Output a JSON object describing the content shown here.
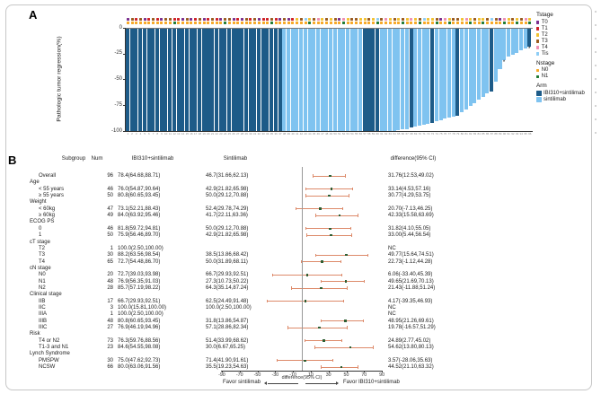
{
  "panels": {
    "a_label": "A",
    "b_label": "B"
  },
  "colors": {
    "arm_dark": "#1d5b88",
    "arm_light": "#7fc3f0",
    "tstage": {
      "0": "#7b2f8e",
      "1": "#cf2127",
      "2": "#f2c231",
      "3": "#9a5b1f",
      "4": "#ef8fb2",
      "i": "#8ecdf5"
    },
    "nstage": {
      "0": "#f7a928",
      "1": "#1f7a33"
    },
    "ci": "#dd8a6a",
    "point": "#2f5e33"
  },
  "chart_data": [
    {
      "type": "bar",
      "subtype": "waterfall",
      "ylabel": "Pathologic tumor regression(%)",
      "ylim": [
        0,
        -100
      ],
      "yticks": [
        0,
        -25,
        -50,
        -75,
        -100
      ],
      "xtick_range": [
        1,
        96
      ],
      "legend": {
        "tstage_title": "Tstage",
        "tstage_items": [
          {
            "key": "0",
            "label": "T0"
          },
          {
            "key": "1",
            "label": "T1"
          },
          {
            "key": "2",
            "label": "T2"
          },
          {
            "key": "3",
            "label": "T3"
          },
          {
            "key": "4",
            "label": "T4"
          },
          {
            "key": "i",
            "label": "Tis"
          }
        ],
        "nstage_title": "Nstage",
        "nstage_items": [
          {
            "key": "0",
            "label": "N0"
          },
          {
            "key": "1",
            "label": "N1"
          }
        ],
        "arm_title": "Arm",
        "arm_items": [
          {
            "key": "D",
            "label": "IBI310+sintilimab"
          },
          {
            "key": "L",
            "label": "sintilimab"
          }
        ]
      },
      "patients": {
        "values": [
          -100,
          -100,
          -100,
          -100,
          -100,
          -100,
          -100,
          -100,
          -100,
          -100,
          -100,
          -100,
          -100,
          -100,
          -100,
          -100,
          -100,
          -100,
          -100,
          -100,
          -100,
          -100,
          -100,
          -100,
          -100,
          -100,
          -100,
          -100,
          -100,
          -100,
          -100,
          -100,
          -100,
          -100,
          -100,
          -100,
          -100,
          -100,
          -100,
          -100,
          -100,
          -100,
          -100,
          -100,
          -100,
          -100,
          -100,
          -100,
          -100,
          -100,
          -100,
          -100,
          -100,
          -100,
          -100,
          -100,
          -100,
          -100,
          -100,
          -100,
          -100,
          -100,
          -100,
          -100,
          -99,
          -98,
          -98,
          -97,
          -96,
          -95,
          -94,
          -93,
          -92,
          -91,
          -90,
          -88,
          -87,
          -86,
          -85,
          -82,
          -79,
          -76,
          -73,
          -70,
          -67,
          -64,
          -62,
          -52,
          -40,
          -31,
          -28,
          -26,
          -24,
          -22,
          -20,
          -18
        ],
        "arm": "DDDDDDDDDDDDDDDDDDDDDDDDDDDDDDDDDDDDDLLLLLLLLLLLLLLLLLLLDDDDLLLLLLLDLLLLDLLLLLDLLLLLLLDLLLLLLLLD",
        "tstage": "031301310331103013013103301031301131030123i2342323042332232i3423232423i223042332423223i304232342",
        "nstage": "000000000001000000000001000000000010000000010000000100000001000001000100010010000100100001001001",
        "asterisk_indices": [
          89,
          95
        ]
      }
    },
    {
      "type": "table",
      "subtype": "forest",
      "columns": {
        "subgroup": "Subgroup",
        "num": "Num",
        "ibi": "IBI310+sintilimab",
        "sint": "Sintilimab",
        "diff": "difference(95% CI)"
      },
      "xlabel": "difference(95% CI)",
      "favor_left": "Favor sintilimab",
      "favor_right": "Favor IBI310+sintilimab",
      "xticks": [
        -90,
        -70,
        -50,
        -30,
        -10,
        10,
        30,
        50,
        70,
        90
      ],
      "xlim": [
        -90,
        90
      ],
      "rows": [
        {
          "label": "Overall",
          "num": "96",
          "ibi": "78.4(64.68,88.71)",
          "sint": "46.7(31.66,62.13)",
          "diff": "31.76(12.53,49.02)",
          "est": 31.76,
          "lo": 12.53,
          "hi": 49.02
        },
        {
          "label": "Age",
          "header": true
        },
        {
          "label": "< 55 years",
          "num": "46",
          "ibi": "76.0(54.87,90.64)",
          "sint": "42.9(21.82,65.98)",
          "diff": "33.14(4.53,57.16)",
          "est": 33.14,
          "lo": 4.53,
          "hi": 57.16
        },
        {
          "label": "≥ 55 years",
          "num": "50",
          "ibi": "80.8(60.65,93.45)",
          "sint": "50.0(29.12,70.88)",
          "diff": "30.77(4.29,53.75)",
          "est": 30.77,
          "lo": 4.29,
          "hi": 53.75
        },
        {
          "label": "Weight",
          "header": true
        },
        {
          "label": "< 60kg",
          "num": "47",
          "ibi": "73.1(52.21,88.43)",
          "sint": "52.4(29.78,74.29)",
          "diff": "20.70(-7.13,46.25)",
          "est": 20.7,
          "lo": -7.13,
          "hi": 46.25
        },
        {
          "label": "≥ 60kg",
          "num": "49",
          "ibi": "84.0(63.92,95.46)",
          "sint": "41.7(22.11,63.36)",
          "diff": "42.33(15.58,63.69)",
          "est": 42.33,
          "lo": 15.58,
          "hi": 63.69
        },
        {
          "label": "ECOG PS",
          "header": true
        },
        {
          "label": "0",
          "num": "46",
          "ibi": "81.8(59.72,94.81)",
          "sint": "50.0(29.12,70.88)",
          "diff": "31.82(4.10,55.05)",
          "est": 31.82,
          "lo": 4.1,
          "hi": 55.05
        },
        {
          "label": "1",
          "num": "50",
          "ibi": "75.9(56.46,89.70)",
          "sint": "42.9(21.82,65.98)",
          "diff": "33.00(5.44,56.54)",
          "est": 33.0,
          "lo": 5.44,
          "hi": 56.54
        },
        {
          "label": "cT stage",
          "header": true
        },
        {
          "label": "T2",
          "num": "1",
          "ibi": "100.0(2.50,100.00)",
          "sint": "",
          "diff": "NC"
        },
        {
          "label": "T3",
          "num": "30",
          "ibi": "88.2(63.56,98.54)",
          "sint": "38.5(13.86,68.42)",
          "diff": "49.77(15.64,74.51)",
          "est": 49.77,
          "lo": 15.64,
          "hi": 74.51
        },
        {
          "label": "T4",
          "num": "65",
          "ibi": "72.7(54.48,86.70)",
          "sint": "50.0(31.89,68.11)",
          "diff": "22.73(-1.12,44.28)",
          "est": 22.73,
          "lo": -1.12,
          "hi": 44.28
        },
        {
          "label": "cN stage",
          "header": true
        },
        {
          "label": "N0",
          "num": "20",
          "ibi": "72.7(39.03,93.98)",
          "sint": "66.7(29.93,92.51)",
          "diff": "6.06(-33.40,45.39)",
          "est": 6.06,
          "lo": -33.4,
          "hi": 45.39
        },
        {
          "label": "N1",
          "num": "48",
          "ibi": "76.9(56.35,91.03)",
          "sint": "27.3(10.73,50.22)",
          "diff": "49.65(21.69,70.13)",
          "est": 49.65,
          "lo": 21.69,
          "hi": 70.13
        },
        {
          "label": "N2",
          "num": "28",
          "ibi": "85.7(57.19,98.22)",
          "sint": "64.3(35.14,87.24)",
          "diff": "21.43(-11.88,51.24)",
          "est": 21.43,
          "lo": -11.88,
          "hi": 51.24
        },
        {
          "label": "Clinical stage",
          "header": true
        },
        {
          "label": "IIB",
          "num": "17",
          "ibi": "66.7(29.93,92.51)",
          "sint": "62.5(24.49,91.48)",
          "diff": "4.17(-39.35,46.93)",
          "est": 4.17,
          "lo": -39.35,
          "hi": 46.93
        },
        {
          "label": "IIC",
          "num": "3",
          "ibi": "100.0(15.81,100.00)",
          "sint": "100.0(2.50,100.00)",
          "diff": "NC"
        },
        {
          "label": "IIIA",
          "num": "1",
          "ibi": "100.0(2.50,100.00)",
          "sint": "",
          "diff": "NC"
        },
        {
          "label": "IIIB",
          "num": "48",
          "ibi": "80.8(60.65,93.45)",
          "sint": "31.8(13.86,54.87)",
          "diff": "48.95(21.26,69.61)",
          "est": 48.95,
          "lo": 21.26,
          "hi": 69.61
        },
        {
          "label": "IIIC",
          "num": "27",
          "ibi": "76.9(46.19,94.96)",
          "sint": "57.1(28.86,82.34)",
          "diff": "19.78(-16.57,51.29)",
          "est": 19.78,
          "lo": -16.57,
          "hi": 51.29
        },
        {
          "label": "Risk",
          "header": true
        },
        {
          "label": "T4 or N2",
          "num": "73",
          "ibi": "76.3(59.76,88.56)",
          "sint": "51.4(33.99,68.62)",
          "diff": "24.89(2.77,45.02)",
          "est": 24.89,
          "lo": 2.77,
          "hi": 45.02
        },
        {
          "label": "T1-3 and N1",
          "num": "23",
          "ibi": "84.6(54.55,98.08)",
          "sint": "30.0(6.67,65.25)",
          "diff": "54.62(13.80,80.13)",
          "est": 54.62,
          "lo": 13.8,
          "hi": 80.13
        },
        {
          "label": "Lynch Syndrome",
          "header": true
        },
        {
          "label": "PMSPW",
          "num": "30",
          "ibi": "75.0(47.62,92.73)",
          "sint": "71.4(41.90,91.61)",
          "diff": "3.57(-28.06,35.63)",
          "est": 3.57,
          "lo": -28.06,
          "hi": 35.63
        },
        {
          "label": "NCSW",
          "num": "66",
          "ibi": "80.0(63.06,91.56)",
          "sint": "35.5(19.23,54.63)",
          "diff": "44.52(21.10,63.32)",
          "est": 44.52,
          "lo": 21.1,
          "hi": 63.32
        }
      ]
    }
  ]
}
